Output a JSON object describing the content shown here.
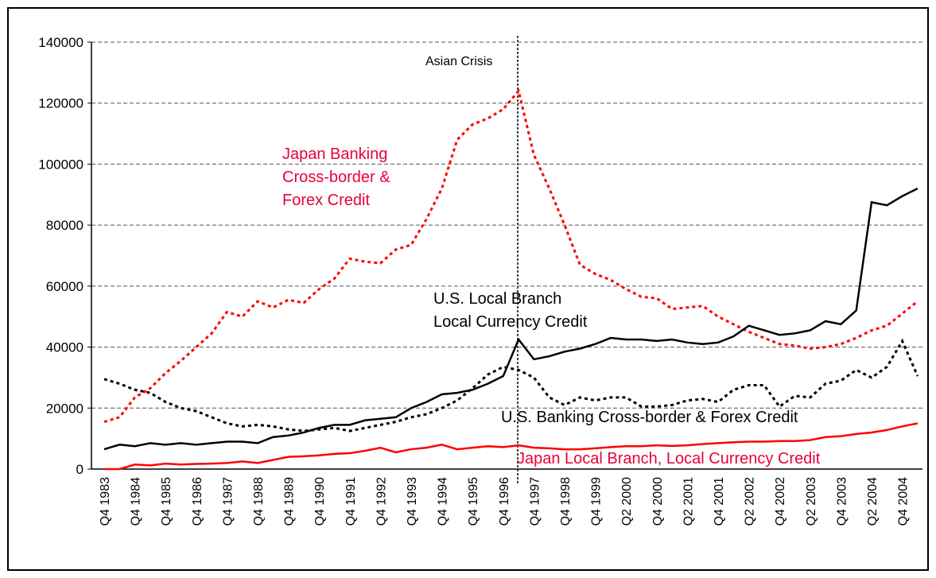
{
  "chart_data": {
    "type": "line",
    "annotation": "Asian Crisis",
    "categories": [
      "Q4 1983",
      null,
      "Q4 1984",
      null,
      "Q4 1985",
      null,
      "Q4 1986",
      null,
      "Q4 1987",
      null,
      "Q4 1988",
      null,
      "Q4 1989",
      null,
      "Q4 1990",
      null,
      "Q4 1991",
      null,
      "Q4 1992",
      null,
      "Q4 1993",
      null,
      "Q4 1994",
      null,
      "Q4 1995",
      null,
      "Q4 1996",
      null,
      "Q4 1997",
      null,
      "Q4 1998",
      null,
      "Q4 1999",
      null,
      "Q2 2000",
      null,
      "Q4 2000",
      null,
      "Q2 2001",
      null,
      "Q4 2001",
      null,
      "Q2 2002",
      null,
      "Q4 2002",
      null,
      "Q2 2003",
      null,
      "Q4 2003",
      null,
      "Q2 2004",
      null,
      "Q4 2004",
      null
    ],
    "ylim": [
      0,
      140000
    ],
    "yticks": [
      0,
      20000,
      40000,
      60000,
      80000,
      100000,
      120000,
      140000
    ],
    "grid": true,
    "series": [
      {
        "name": "Japan Banking\nCross-border &\nForex Credit",
        "color": "#ff0000",
        "style": "dotted",
        "values": [
          15500,
          17000,
          23500,
          26500,
          31500,
          35500,
          40000,
          44500,
          51500,
          50000,
          55000,
          53000,
          55500,
          54500,
          59000,
          62500,
          69000,
          68000,
          67500,
          72000,
          73500,
          82000,
          92000,
          108000,
          113000,
          115000,
          118000,
          124000,
          103000,
          92000,
          80000,
          67000,
          64000,
          62000,
          59000,
          56500,
          56000,
          52500,
          53000,
          53500,
          50000,
          47500,
          45000,
          43000,
          41000,
          40500,
          39500,
          40000,
          41000,
          43000,
          45500,
          47000,
          51000,
          55000
        ]
      },
      {
        "name": "U.S. Local Branch\nLocal Currency Credit",
        "color": "#000000",
        "style": "solid",
        "values": [
          6500,
          8000,
          7500,
          8500,
          8000,
          8500,
          8000,
          8500,
          9000,
          9000,
          8500,
          10500,
          11000,
          12000,
          13500,
          14500,
          14500,
          16000,
          16500,
          17000,
          20000,
          22000,
          24500,
          25000,
          26000,
          28000,
          30500,
          42500,
          36000,
          37000,
          38500,
          39500,
          41000,
          43000,
          42500,
          42500,
          42000,
          42500,
          41500,
          41000,
          41500,
          43500,
          47000,
          45500,
          44000,
          44500,
          45500,
          48500,
          47500,
          52000,
          87500,
          86500,
          89500,
          92000
        ]
      },
      {
        "name": "U.S. Banking Cross-border & Forex Credit",
        "color": "#000000",
        "style": "dotted",
        "values": [
          29500,
          28000,
          26000,
          25000,
          22000,
          20000,
          19000,
          17000,
          15000,
          14000,
          14500,
          14000,
          13000,
          12500,
          13000,
          13500,
          12500,
          13500,
          14500,
          15500,
          17000,
          18000,
          20000,
          22500,
          26500,
          31000,
          33500,
          32500,
          30000,
          23500,
          21000,
          23500,
          22500,
          23500,
          23500,
          20500,
          20500,
          21000,
          22500,
          23000,
          22000,
          26000,
          27500,
          27500,
          20500,
          24000,
          23500,
          28000,
          29000,
          32500,
          30000,
          33500,
          42000,
          30500
        ]
      },
      {
        "name": "Japan Local Branch, Local Currency Credit",
        "color": "#ff0000",
        "style": "solid",
        "values": [
          0,
          0,
          1500,
          1200,
          1800,
          1500,
          1700,
          1800,
          2000,
          2500,
          2000,
          3000,
          4000,
          4200,
          4500,
          5000,
          5200,
          6000,
          7000,
          5500,
          6500,
          7000,
          8000,
          6500,
          7000,
          7500,
          7200,
          7800,
          7000,
          6800,
          6500,
          6500,
          6800,
          7200,
          7500,
          7500,
          7800,
          7600,
          7800,
          8200,
          8500,
          8800,
          9000,
          9000,
          9200,
          9200,
          9500,
          10500,
          10800,
          11500,
          12000,
          12800,
          14000,
          15000
        ]
      }
    ]
  }
}
